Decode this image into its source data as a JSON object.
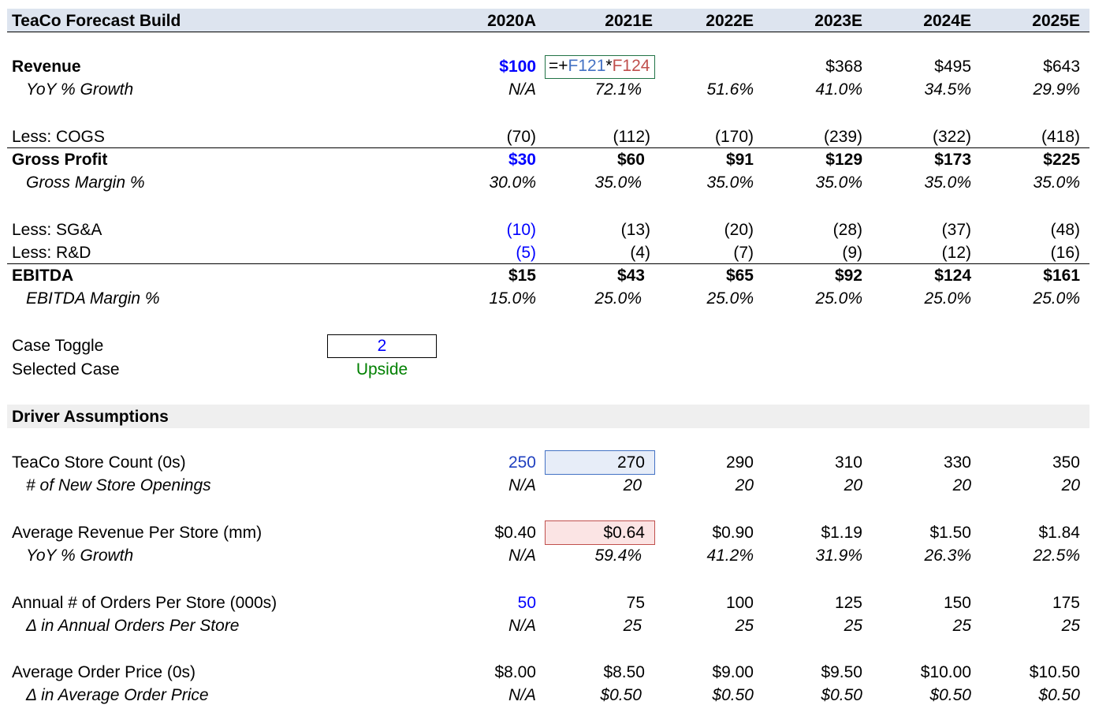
{
  "header": {
    "title": "TeaCo Forecast Build",
    "years": [
      "2020A",
      "2021E",
      "2022E",
      "2023E",
      "2024E",
      "2025E"
    ]
  },
  "formula_bar": {
    "prefix": "=+",
    "ref1": "F121",
    "op": "*",
    "ref2": "F124"
  },
  "income": {
    "revenue": {
      "label": "Revenue",
      "values": [
        "$100",
        "",
        "",
        "$368",
        "$495",
        "$643"
      ]
    },
    "revenue_growth": {
      "label": "YoY % Growth",
      "values": [
        "N/A",
        "72.1%",
        "51.6%",
        "41.0%",
        "34.5%",
        "29.9%"
      ]
    },
    "cogs": {
      "label": "Less: COGS",
      "values": [
        "(70)",
        "(112)",
        "(170)",
        "(239)",
        "(322)",
        "(418)"
      ]
    },
    "gross_profit": {
      "label": "Gross Profit",
      "values": [
        "$30",
        "$60",
        "$91",
        "$129",
        "$173",
        "$225"
      ]
    },
    "gross_margin": {
      "label": "Gross Margin %",
      "values": [
        "30.0%",
        "35.0%",
        "35.0%",
        "35.0%",
        "35.0%",
        "35.0%"
      ]
    },
    "sga": {
      "label": "Less: SG&A",
      "values": [
        "(10)",
        "(13)",
        "(20)",
        "(28)",
        "(37)",
        "(48)"
      ]
    },
    "rnd": {
      "label": "Less: R&D",
      "values": [
        "(5)",
        "(4)",
        "(7)",
        "(9)",
        "(12)",
        "(16)"
      ]
    },
    "ebitda": {
      "label": "EBITDA",
      "values": [
        "$15",
        "$43",
        "$65",
        "$92",
        "$124",
        "$161"
      ]
    },
    "ebitda_margin": {
      "label": "EBITDA Margin %",
      "values": [
        "15.0%",
        "25.0%",
        "25.0%",
        "25.0%",
        "25.0%",
        "25.0%"
      ]
    }
  },
  "case": {
    "toggle_label": "Case Toggle",
    "toggle_value": "2",
    "selected_label": "Selected Case",
    "selected_value": "Upside"
  },
  "drivers": {
    "title": "Driver Assumptions",
    "store_count": {
      "label": "TeaCo Store Count (0s)",
      "values": [
        "250",
        "270",
        "290",
        "310",
        "330",
        "350"
      ]
    },
    "new_stores": {
      "label": "# of New Store Openings",
      "values": [
        "N/A",
        "20",
        "20",
        "20",
        "20",
        "20"
      ]
    },
    "rev_per_store": {
      "label": "Average Revenue Per Store (mm)",
      "values": [
        "$0.40",
        "$0.64",
        "$0.90",
        "$1.19",
        "$1.50",
        "$1.84"
      ]
    },
    "rev_per_store_growth": {
      "label": "YoY % Growth",
      "values": [
        "N/A",
        "59.4%",
        "41.2%",
        "31.9%",
        "26.3%",
        "22.5%"
      ]
    },
    "orders_per_store": {
      "label": "Annual # of Orders Per Store (000s)",
      "values": [
        "50",
        "75",
        "100",
        "125",
        "150",
        "175"
      ]
    },
    "orders_delta": {
      "label": "Δ in Annual Orders Per Store",
      "values": [
        "N/A",
        "25",
        "25",
        "25",
        "25",
        "25"
      ]
    },
    "order_price": {
      "label": "Average Order Price (0s)",
      "values": [
        "$8.00",
        "$8.50",
        "$9.00",
        "$9.50",
        "$10.00",
        "$10.50"
      ]
    },
    "order_price_delta": {
      "label": "Δ in Average Order Price",
      "values": [
        "N/A",
        "$0.50",
        "$0.50",
        "$0.50",
        "$0.50",
        "$0.50"
      ]
    }
  },
  "colors": {
    "header_band": "#dde4ef",
    "input_blue": "#0000ff",
    "case_green": "#008000",
    "formula_ref1": "#4472c4",
    "formula_ref2": "#c0504d"
  }
}
